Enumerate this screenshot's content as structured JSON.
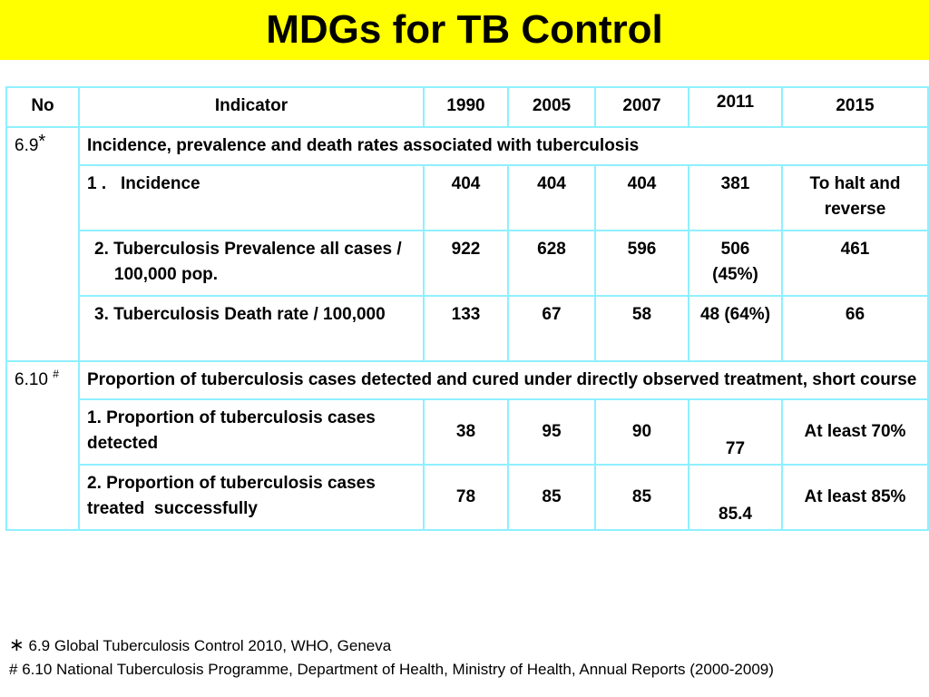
{
  "title": "MDGs for TB Control",
  "colors": {
    "title_bg": "#ffff00",
    "grid_border": "#8ff0ff"
  },
  "table": {
    "headers": [
      "No",
      "Indicator",
      "1990",
      "2005",
      "2007",
      "2011",
      "2015"
    ],
    "groups": [
      {
        "no": "6.9",
        "mark": "*",
        "heading": "Incidence, prevalence and death rates associated with tuberculosis",
        "rows": [
          {
            "indicator": "1 .   Incidence",
            "values": [
              "404",
              "404",
              "404",
              "381",
              "To halt and reverse"
            ]
          },
          {
            "indicator": "2. Tuberculosis Prevalence all cases / 100,000 pop.",
            "values": [
              "922",
              "628",
              "596",
              "506 (45%)",
              "461"
            ]
          },
          {
            "indicator": "3.   Tuberculosis Death rate / 100,000",
            "values": [
              "133",
              "67",
              "58",
              "48 (64%)",
              "66"
            ]
          }
        ]
      },
      {
        "no": "6.10",
        "mark": "#",
        "heading": "Proportion of tuberculosis cases detected and cured under directly observed treatment, short course",
        "rows": [
          {
            "indicator": "1. Proportion of tuberculosis cases   detected",
            "values": [
              "38",
              "95",
              "90",
              "77",
              "At least 70%"
            ]
          },
          {
            "indicator": "2. Proportion of tuberculosis cases treated  successfully",
            "values": [
              "78",
              "85",
              "85",
              "85.4",
              "At least 85%"
            ]
          }
        ]
      }
    ]
  },
  "footnotes": [
    {
      "symbol": "∗",
      "text": "6.9  Global Tuberculosis Control 2010, WHO, Geneva"
    },
    {
      "symbol": "#",
      "text": "6.10  National Tuberculosis Programme, Department of Health, Ministry of Health, Annual Reports (2000-2009)"
    }
  ]
}
